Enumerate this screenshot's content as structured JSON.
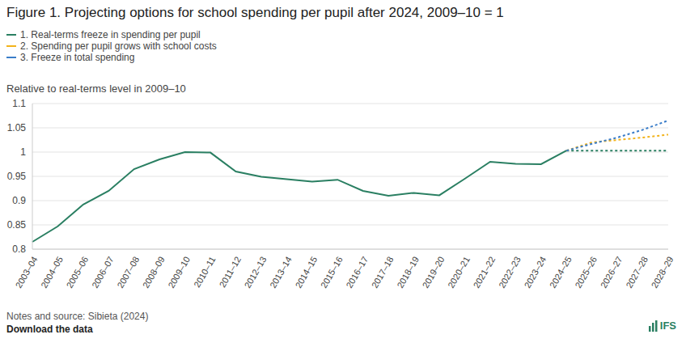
{
  "chart_data": {
    "type": "line",
    "title": "Figure 1. Projecting options for school spending per pupil after 2024, 2009–10 = 1",
    "subtitle": "Relative to real-terms level in 2009–10",
    "notes": "Notes and source: Sibieta (2024)",
    "download": "Download the data",
    "brand": "IFS",
    "categories": [
      "2003–04",
      "2004–05",
      "2005–06",
      "2006–07",
      "2007–08",
      "2008–09",
      "2009–10",
      "2010–11",
      "2011–12",
      "2012–13",
      "2013–14",
      "2014–15",
      "2015–16",
      "2016–17",
      "2017–18",
      "2018–19",
      "2019–20",
      "2020–21",
      "2021–22",
      "2022–23",
      "2023–24",
      "2024–25",
      "2025–26",
      "2026–27",
      "2027–28",
      "2028–29"
    ],
    "series": [
      {
        "color": "#2a7f62",
        "line_style": "solid",
        "values": [
          0.815,
          0.847,
          0.892,
          0.92,
          0.965,
          0.985,
          1.0,
          0.999,
          0.96,
          0.949,
          0.944,
          0.939,
          0.943,
          0.92,
          0.91,
          0.916,
          0.911,
          0.945,
          0.98,
          0.976,
          0.975,
          1.003,
          null,
          null,
          null,
          null
        ]
      },
      {
        "name": "1. Real-terms freeze in spending per pupil",
        "color": "#2a7f62",
        "line_style": "dashed",
        "values": [
          null,
          null,
          null,
          null,
          null,
          null,
          null,
          null,
          null,
          null,
          null,
          null,
          null,
          null,
          null,
          null,
          null,
          null,
          null,
          null,
          null,
          1.003,
          1.003,
          1.003,
          1.003,
          1.003
        ]
      },
      {
        "name": "2. Spending per pupil grows with school costs",
        "color": "#f2b31b",
        "line_style": "dashed",
        "values": [
          null,
          null,
          null,
          null,
          null,
          null,
          null,
          null,
          null,
          null,
          null,
          null,
          null,
          null,
          null,
          null,
          null,
          null,
          null,
          null,
          null,
          1.003,
          1.02,
          1.025,
          1.03,
          1.036
        ]
      },
      {
        "name": "3. Freeze in total spending",
        "color": "#3a7dc9",
        "line_style": "dashed",
        "values": [
          null,
          null,
          null,
          null,
          null,
          null,
          null,
          null,
          null,
          null,
          null,
          null,
          null,
          null,
          null,
          null,
          null,
          null,
          null,
          null,
          null,
          1.003,
          1.017,
          1.03,
          1.046,
          1.065
        ]
      }
    ],
    "ylim": [
      0.8,
      1.1
    ],
    "yticks": [
      0.8,
      0.85,
      0.9,
      0.95,
      1,
      1.05,
      1.1
    ],
    "grid": true,
    "legend": "top-left"
  }
}
